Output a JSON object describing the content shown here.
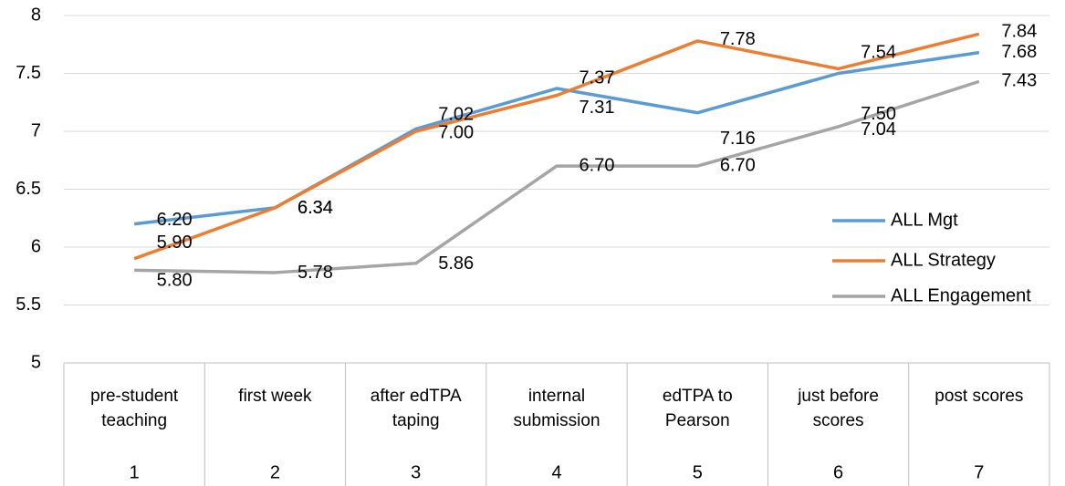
{
  "chart_data": {
    "type": "line",
    "categories": [
      "pre-student teaching",
      "first week",
      "after edTPA taping",
      "internal submission",
      "edTPA to Pearson",
      "just before scores",
      "post scores"
    ],
    "category_numbers": [
      1,
      2,
      3,
      4,
      5,
      6,
      7
    ],
    "series": [
      {
        "name": "ALL Mgt",
        "color": "#5b9bd5",
        "values": [
          6.2,
          6.34,
          7.02,
          7.37,
          7.16,
          7.5,
          7.68
        ],
        "value_labels": [
          "6.20",
          "6.34",
          "7.02",
          "7.37",
          "7.16",
          "7.50",
          "7.68"
        ]
      },
      {
        "name": "ALL Strategy",
        "color": "#ed7d31",
        "values": [
          5.9,
          6.34,
          7.0,
          7.31,
          7.78,
          7.54,
          7.84
        ],
        "value_labels": [
          "5.90",
          "6.34",
          "7.00",
          "7.31",
          "7.78",
          "7.54",
          "7.84"
        ]
      },
      {
        "name": "ALL Engagement",
        "color": "#a5a5a5",
        "values": [
          5.8,
          5.78,
          5.86,
          6.7,
          6.7,
          7.04,
          7.43
        ],
        "value_labels": [
          "5.80",
          "5.78",
          "5.86",
          "6.70",
          "6.70",
          "7.04",
          "7.43"
        ]
      }
    ],
    "ylim": [
      5,
      8
    ],
    "yticks": [
      5,
      {
        "value": 5.5,
        "label": "5.5"
      },
      6,
      {
        "value": 6.5,
        "label": "6.5"
      },
      7,
      {
        "value": 7.5,
        "label": "7.5"
      },
      8
    ],
    "grid": true,
    "legend": "right"
  }
}
